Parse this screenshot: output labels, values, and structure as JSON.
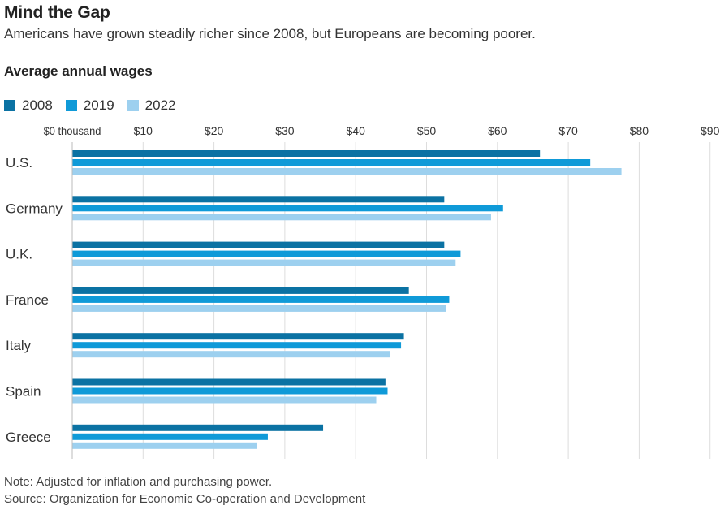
{
  "header": {
    "title": "Mind the Gap",
    "subtitle": "Americans have grown steadily richer since 2008, but Europeans are becoming poorer.",
    "section_label": "Average annual wages"
  },
  "footer": {
    "note": "Note: Adjusted for inflation and purchasing power.",
    "source": "Source: Organization for Economic Co-operation and Development"
  },
  "chart_data": {
    "type": "bar",
    "orientation": "horizontal",
    "title": "Mind the Gap",
    "subtitle": "Americans have grown steadily richer since 2008, but Europeans are becoming poorer.",
    "ylabel": "Average annual wages",
    "categories": [
      "U.S.",
      "Germany",
      "U.K.",
      "France",
      "Italy",
      "Spain",
      "Greece"
    ],
    "series": [
      {
        "name": "2008",
        "color": "#0b72a3",
        "values": [
          66.0,
          52.5,
          52.5,
          47.5,
          46.8,
          44.2,
          35.4
        ]
      },
      {
        "name": "2019",
        "color": "#0f9ad8",
        "values": [
          73.1,
          60.8,
          54.8,
          53.2,
          46.4,
          44.5,
          27.6
        ]
      },
      {
        "name": "2022",
        "color": "#9dd0ef",
        "values": [
          77.5,
          59.1,
          54.1,
          52.8,
          44.9,
          42.9,
          26.1
        ]
      }
    ],
    "xlim": [
      0,
      90
    ],
    "xticks": [
      0,
      10,
      20,
      30,
      40,
      50,
      60,
      70,
      80,
      90
    ],
    "xtick_labels": [
      "$0 thousand",
      "$10",
      "$20",
      "$30",
      "$40",
      "$50",
      "$60",
      "$70",
      "$80",
      "$90"
    ],
    "grid": "vertical",
    "legend_position": "top-left"
  }
}
